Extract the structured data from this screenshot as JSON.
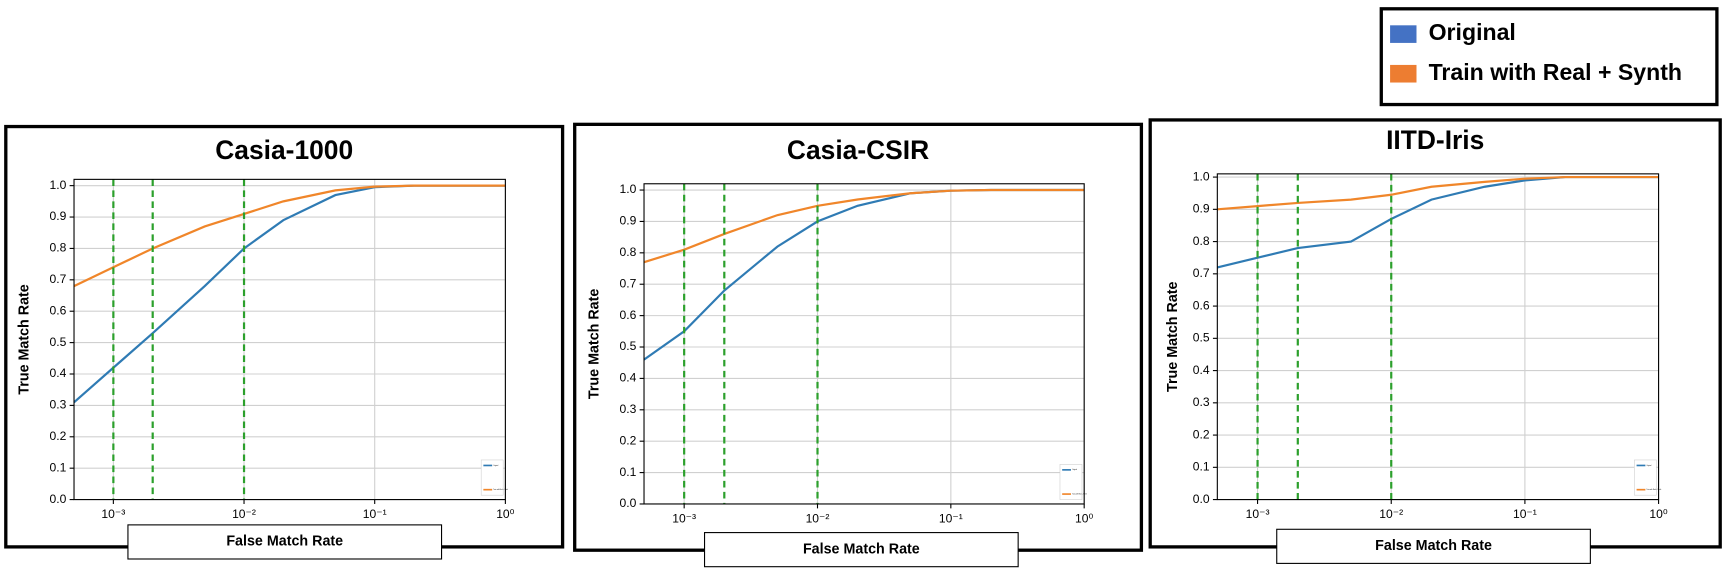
{
  "legend_colors": [
    "#4472c4",
    "#ed7d31"
  ],
  "chart_data": [
    {
      "type": "line",
      "title": "Casia-1000",
      "xlabel": "False Match Rate",
      "ylabel": "True Match Rate",
      "xscale": "log",
      "grid": true,
      "xlim": [
        0.0005,
        1
      ],
      "ylim": [
        0,
        1.02
      ],
      "xticks": [
        {
          "value": 0.001,
          "label": "10⁻³"
        },
        {
          "value": 0.01,
          "label": "10⁻²"
        },
        {
          "value": 0.1,
          "label": "10⁻¹"
        },
        {
          "value": 1,
          "label": "10⁰"
        }
      ],
      "yticks": [
        {
          "value": 0,
          "label": "0.0"
        },
        0.1,
        0.2,
        0.3,
        0.4,
        0.5,
        0.6,
        0.7,
        0.8,
        0.9,
        {
          "value": 1,
          "label": "1.0"
        }
      ],
      "vlines": [
        0.001,
        0.002,
        0.01
      ],
      "vline_color": "#2ca02c",
      "x": [
        0.0005,
        0.001,
        0.002,
        0.005,
        0.01,
        0.02,
        0.05,
        0.1,
        0.2,
        1
      ],
      "series": [
        {
          "name": "Original",
          "color": "#2f7bb4",
          "values": [
            0.31,
            0.42,
            0.53,
            0.68,
            0.8,
            0.89,
            0.97,
            0.995,
            1.0,
            1.0
          ]
        },
        {
          "name": "Train with Real + Synth",
          "color": "#f0862a",
          "values": [
            0.68,
            0.74,
            0.8,
            0.87,
            0.91,
            0.95,
            0.985,
            0.997,
            1.0,
            1.0
          ]
        }
      ]
    },
    {
      "type": "line",
      "title": "Casia-CSIR",
      "xlabel": "False Match Rate",
      "ylabel": "True Match Rate",
      "xscale": "log",
      "grid": true,
      "xlim": [
        0.0005,
        1
      ],
      "ylim": [
        0,
        1.02
      ],
      "xticks": [
        {
          "value": 0.001,
          "label": "10⁻³"
        },
        {
          "value": 0.01,
          "label": "10⁻²"
        },
        {
          "value": 0.1,
          "label": "10⁻¹"
        },
        {
          "value": 1,
          "label": "10⁰"
        }
      ],
      "yticks": [
        {
          "value": 0,
          "label": "0.0"
        },
        0.1,
        0.2,
        0.3,
        0.4,
        0.5,
        0.6,
        0.7,
        0.8,
        0.9,
        {
          "value": 1,
          "label": "1.0"
        }
      ],
      "vlines": [
        0.001,
        0.002,
        0.01
      ],
      "vline_color": "#2ca02c",
      "x": [
        0.0005,
        0.001,
        0.002,
        0.005,
        0.01,
        0.02,
        0.05,
        0.1,
        0.2,
        1
      ],
      "series": [
        {
          "name": "Original",
          "color": "#2f7bb4",
          "values": [
            0.46,
            0.55,
            0.68,
            0.82,
            0.9,
            0.95,
            0.99,
            0.998,
            1.0,
            1.0
          ]
        },
        {
          "name": "Train with Real + Synth",
          "color": "#f0862a",
          "values": [
            0.77,
            0.81,
            0.86,
            0.92,
            0.95,
            0.97,
            0.99,
            0.998,
            1.0,
            1.0
          ]
        }
      ]
    },
    {
      "type": "line",
      "title": "IITD-Iris",
      "xlabel": "False Match Rate",
      "ylabel": "True Match Rate",
      "xscale": "log",
      "grid": true,
      "xlim": [
        0.0005,
        1
      ],
      "ylim": [
        0,
        1.01
      ],
      "xticks": [
        {
          "value": 0.001,
          "label": "10⁻³"
        },
        {
          "value": 0.01,
          "label": "10⁻²"
        },
        {
          "value": 0.1,
          "label": "10⁻¹"
        },
        {
          "value": 1,
          "label": "10⁰"
        }
      ],
      "yticks": [
        {
          "value": 0,
          "label": "0.0"
        },
        0.1,
        0.2,
        0.3,
        0.4,
        0.5,
        0.6,
        0.7,
        0.8,
        0.9,
        {
          "value": 1,
          "label": "1.0"
        }
      ],
      "vlines": [
        0.001,
        0.002,
        0.01
      ],
      "vline_color": "#2ca02c",
      "x": [
        0.0005,
        0.001,
        0.002,
        0.005,
        0.01,
        0.02,
        0.05,
        0.1,
        0.2,
        1
      ],
      "series": [
        {
          "name": "Original",
          "color": "#2f7bb4",
          "values": [
            0.72,
            0.75,
            0.78,
            0.8,
            0.87,
            0.93,
            0.97,
            0.99,
            1.0,
            1.0
          ]
        },
        {
          "name": "Train with Real + Synth",
          "color": "#f0862a",
          "values": [
            0.9,
            0.91,
            0.92,
            0.93,
            0.945,
            0.97,
            0.985,
            0.995,
            1.0,
            1.0
          ]
        }
      ]
    }
  ]
}
